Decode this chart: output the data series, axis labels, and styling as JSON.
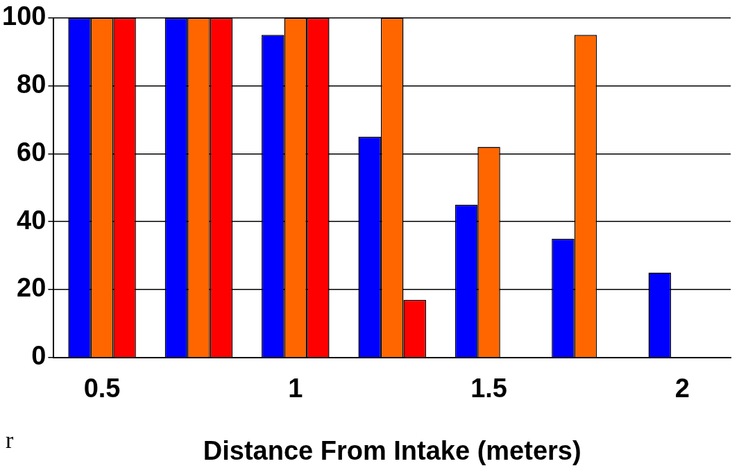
{
  "chart_data": {
    "type": "bar",
    "xlabel": "Distance From Intake (meters)",
    "categories": [
      "0.5",
      null,
      "1",
      null,
      "1.5",
      null,
      "2"
    ],
    "series": [
      {
        "color": "#0000ff",
        "values": [
          100,
          100,
          95,
          65,
          45,
          35,
          25
        ]
      },
      {
        "color": "#ff6600",
        "values": [
          100,
          100,
          100,
          100,
          62,
          95,
          0
        ]
      },
      {
        "color": "#ff0000",
        "values": [
          100,
          100,
          100,
          17,
          0,
          0,
          0
        ]
      }
    ],
    "ylim": [
      0,
      100
    ],
    "yticks": [
      0,
      20,
      40,
      60,
      80,
      100
    ],
    "grid": "y",
    "legend": false,
    "annotations": [
      "r"
    ]
  }
}
